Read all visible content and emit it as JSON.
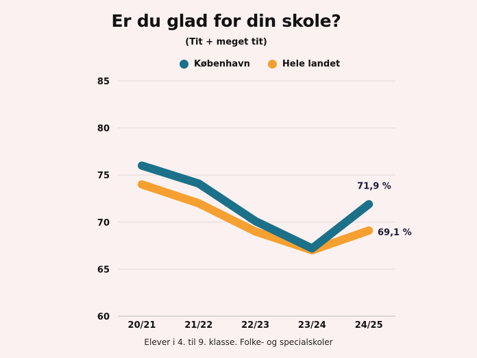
{
  "chart_data": {
    "type": "line",
    "title": "Er du glad for din skole?",
    "subtitle": "(Tit + meget tit)",
    "categories": [
      "20/21",
      "21/22",
      "22/23",
      "23/24",
      "24/25"
    ],
    "series": [
      {
        "name": "København",
        "color": "#1b7189",
        "values": [
          76.0,
          74.1,
          70.1,
          67.2,
          71.9
        ],
        "end_label": "71,9 %"
      },
      {
        "name": "Hele landet",
        "color": "#f5a030",
        "values": [
          74.0,
          72.0,
          69.0,
          67.0,
          69.1
        ],
        "end_label": "69,1 %"
      }
    ],
    "ylim": [
      60,
      85
    ],
    "yticks": [
      60,
      65,
      70,
      75,
      80,
      85
    ],
    "grid": true,
    "legend_position": "top",
    "footnote": "Elever i 4. til 9. klasse. Folke- og specialskoler"
  }
}
